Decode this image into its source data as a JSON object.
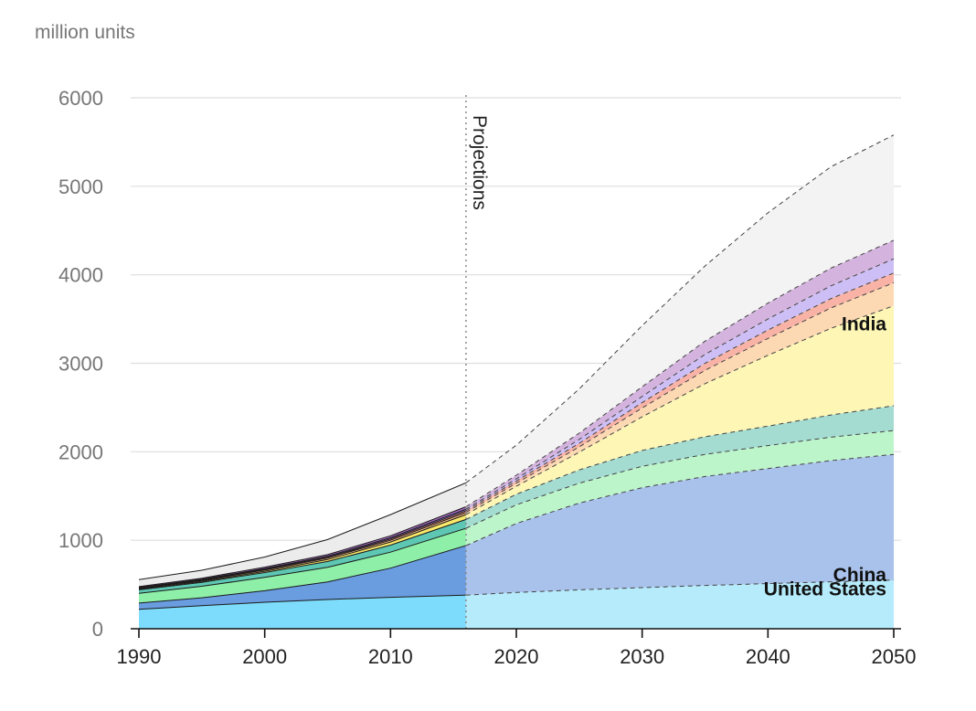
{
  "chart_data": {
    "type": "area",
    "ylabel": "million units",
    "xlim": [
      1990,
      2050
    ],
    "ylim": [
      0,
      6000
    ],
    "y_ticks": [
      0,
      1000,
      2000,
      3000,
      4000,
      5000,
      6000
    ],
    "x_ticks": [
      1990,
      2000,
      2010,
      2020,
      2030,
      2040,
      2050
    ],
    "grid": "horizontal",
    "projection_start": 2016,
    "projection_label": "Projections",
    "x": [
      1990,
      1995,
      2000,
      2005,
      2010,
      2016,
      2020,
      2025,
      2030,
      2035,
      2040,
      2045,
      2050
    ],
    "series": [
      {
        "name": "United States",
        "color_actual": "#7ddcfb",
        "color_proj": "#b5ebfb",
        "values": [
          220,
          260,
          300,
          330,
          355,
          380,
          410,
          440,
          465,
          490,
          510,
          530,
          550
        ]
      },
      {
        "name": "China",
        "color_actual": "#6a9ce0",
        "color_proj": "#a9c2ec",
        "values": [
          70,
          90,
          130,
          200,
          330,
          560,
          780,
          980,
          1130,
          1230,
          1300,
          1370,
          1420
        ]
      },
      {
        "color_actual": "#8ef0a8",
        "color_proj": "#bdf5cb",
        "values": [
          110,
          130,
          150,
          165,
          180,
          195,
          210,
          225,
          240,
          250,
          260,
          265,
          270
        ]
      },
      {
        "color_actual": "#5ec7b3",
        "color_proj": "#a4dcd1",
        "values": [
          40,
          45,
          55,
          65,
          80,
          100,
          120,
          150,
          180,
          200,
          220,
          250,
          280
        ]
      },
      {
        "name": "India",
        "color_actual": "#fbe96a",
        "color_proj": "#fdf6b5",
        "values": [
          8,
          10,
          15,
          22,
          35,
          55,
          90,
          200,
          380,
          600,
          800,
          980,
          1130
        ]
      },
      {
        "color_actual": "#fbc08a",
        "color_proj": "#fdd9b3",
        "values": [
          8,
          10,
          13,
          16,
          20,
          25,
          35,
          60,
          100,
          150,
          190,
          230,
          260
        ]
      },
      {
        "color_actual": "#f5907d",
        "color_proj": "#f8b3a6",
        "values": [
          5,
          7,
          9,
          11,
          14,
          18,
          25,
          40,
          60,
          80,
          95,
          105,
          110
        ]
      },
      {
        "color_actual": "#9a86e8",
        "color_proj": "#cdbff5",
        "values": [
          5,
          7,
          9,
          11,
          14,
          18,
          25,
          45,
          70,
          100,
          125,
          145,
          160
        ]
      },
      {
        "color_actual": "#a66ac0",
        "color_proj": "#d4b4de",
        "values": [
          10,
          12,
          15,
          18,
          22,
          28,
          40,
          70,
          110,
          150,
          180,
          200,
          210
        ]
      },
      {
        "color_actual": "#ececec",
        "color_proj": "#f3f3f3",
        "values": [
          80,
          90,
          115,
          170,
          240,
          270,
          340,
          500,
          690,
          850,
          1020,
          1145,
          1190
        ]
      }
    ],
    "labels": {
      "us": "United States",
      "china": "China",
      "india": "India"
    }
  }
}
